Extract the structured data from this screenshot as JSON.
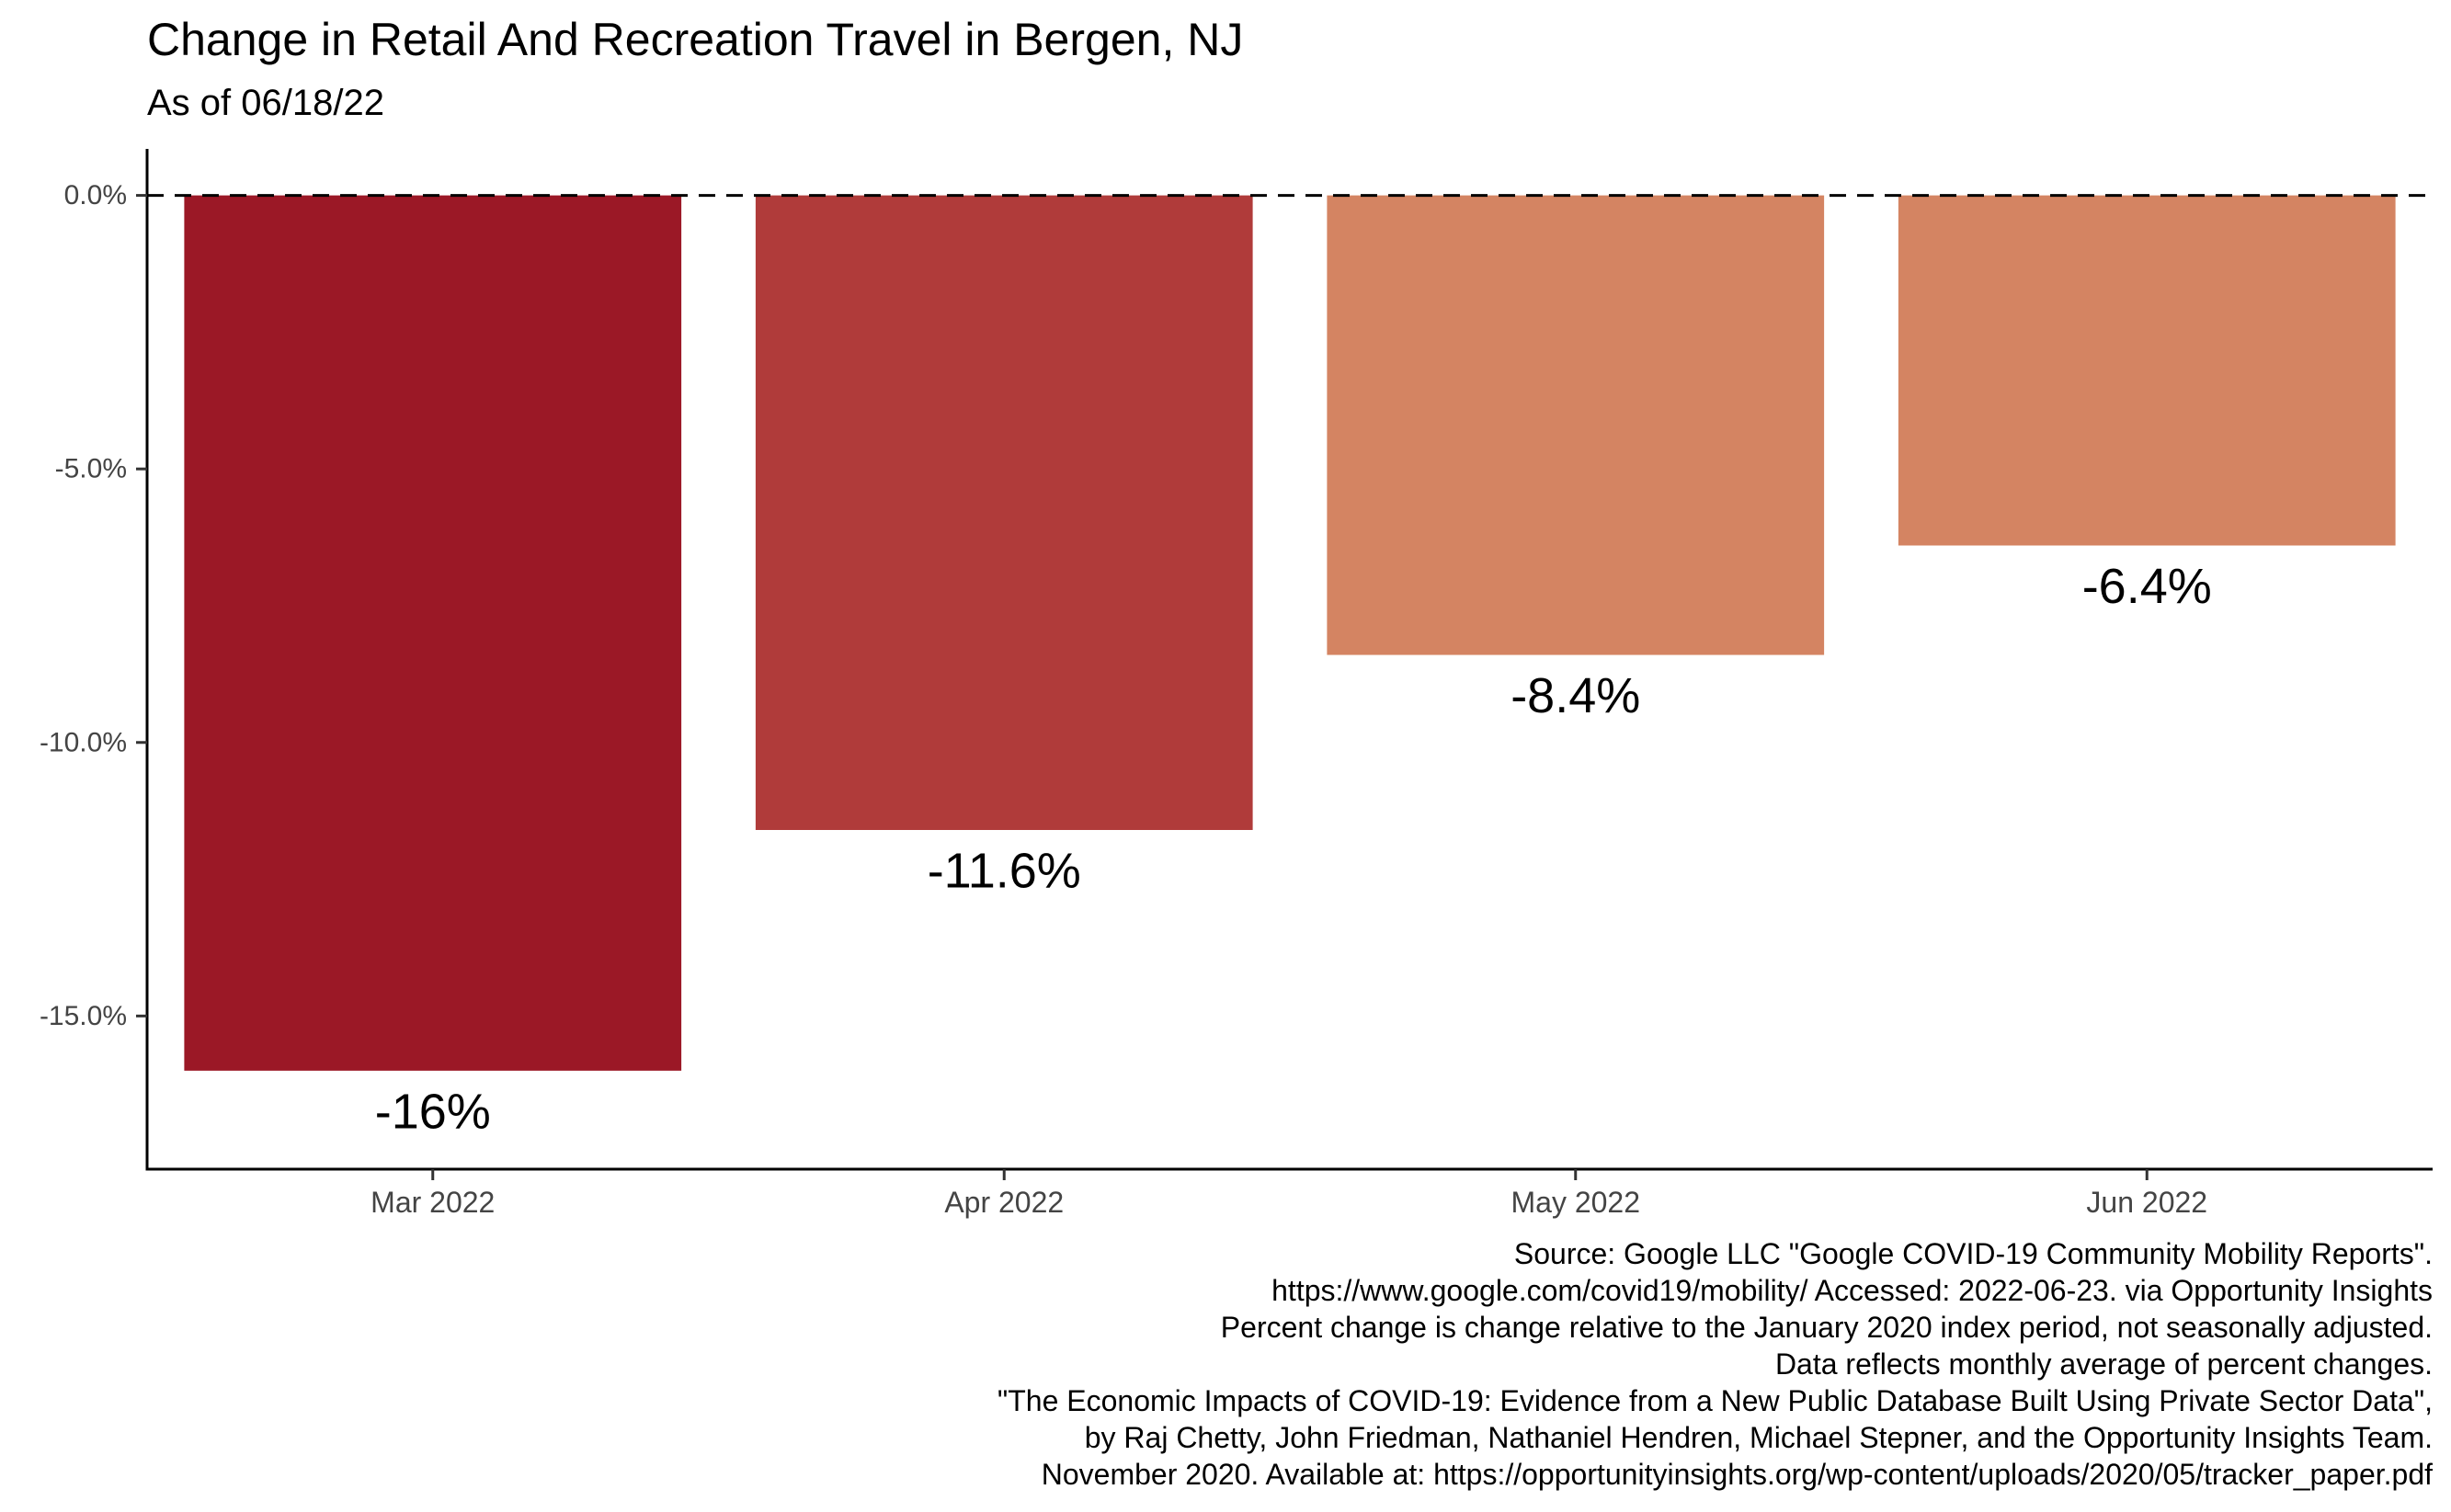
{
  "chart_data": {
    "type": "bar",
    "title": "Change in Retail And Recreation Travel in Bergen, NJ",
    "subtitle": "As of 06/18/22",
    "categories": [
      "Mar 2022",
      "Apr 2022",
      "May 2022",
      "Jun 2022"
    ],
    "values": [
      -16.0,
      -11.6,
      -8.4,
      -6.4
    ],
    "value_labels": [
      "-16%",
      "-11.6%",
      "-8.4%",
      "-6.4%"
    ],
    "bar_colors": [
      "#9b1826",
      "#b03b3a",
      "#d48462",
      "#d48462"
    ],
    "yticks": [
      0,
      -5,
      -10,
      -15
    ],
    "ytick_labels": [
      "0.0%",
      "-5.0%",
      "-10.0%",
      "-15.0%"
    ],
    "ylim": [
      -17.8,
      0.85
    ],
    "reference_line": 0,
    "grid": false,
    "xlabel": "",
    "ylabel": ""
  },
  "caption": {
    "lines": [
      "Source: Google LLC \"Google COVID-19 Community Mobility Reports\".",
      "https://www.google.com/covid19/mobility/ Accessed: 2022-06-23. via Opportunity Insights",
      "Percent change is change relative to the January 2020 index period, not seasonally adjusted.",
      "Data reflects monthly average of percent changes.",
      "\"The Economic Impacts of COVID-19: Evidence from a New Public Database Built Using Private Sector Data\",",
      "by Raj Chetty, John Friedman, Nathaniel Hendren, Michael Stepner, and the Opportunity Insights Team.",
      "November 2020. Available at: https://opportunityinsights.org/wp-content/uploads/2020/05/tracker_paper.pdf"
    ]
  }
}
